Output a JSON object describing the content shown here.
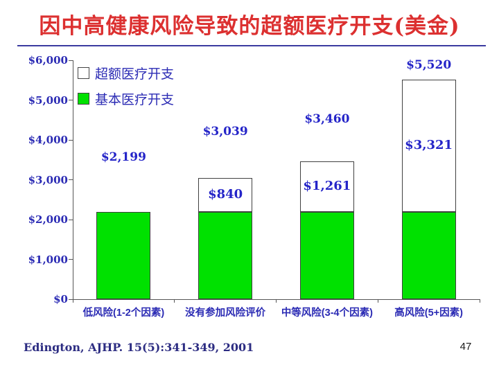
{
  "slide": {
    "title": "因中高健康风险导致的超额医疗开支(美金)",
    "footer_citation": "Edington, AJHP. 15(5):341-349, 2001",
    "page_number": "47"
  },
  "legend": {
    "items": [
      {
        "label": "超额医疗开支",
        "color": "#ffffff"
      },
      {
        "label": "基本医疗开支",
        "color": "#00e100"
      }
    ]
  },
  "chart_data": {
    "type": "bar",
    "stacked": true,
    "title": "因中高健康风险导致的超额医疗开支(美金)",
    "categories": [
      "低风险(1-2个因素)",
      "没有参加风险评价",
      "中等风险(3-4个因素)",
      "高风险(5+因素)"
    ],
    "series": [
      {
        "name": "基本医疗开支",
        "color": "#00e100",
        "values": [
          2199,
          2199,
          2199,
          2199
        ]
      },
      {
        "name": "超额医疗开支",
        "color": "#ffffff",
        "values": [
          0,
          840,
          1261,
          3321
        ]
      }
    ],
    "totals": [
      2199,
      3039,
      3460,
      5520
    ],
    "total_labels": [
      "$2,199",
      "$3,039",
      "$3,460",
      "$5,520"
    ],
    "excess_labels": [
      "",
      "$840",
      "$1,261",
      "$3,321"
    ],
    "xlabel": "",
    "ylabel": "",
    "y_ticks": [
      "$0",
      "$1,000",
      "$2,000",
      "$3,000",
      "$4,000",
      "$5,000",
      "$6,000"
    ],
    "ylim": [
      0,
      6000
    ],
    "grid": false,
    "legend_position": "upper-left-inside",
    "accent_colors": {
      "label_blue": "#2b2bb4",
      "title_red": "#dc3030",
      "bar_green": "#00e100"
    }
  }
}
